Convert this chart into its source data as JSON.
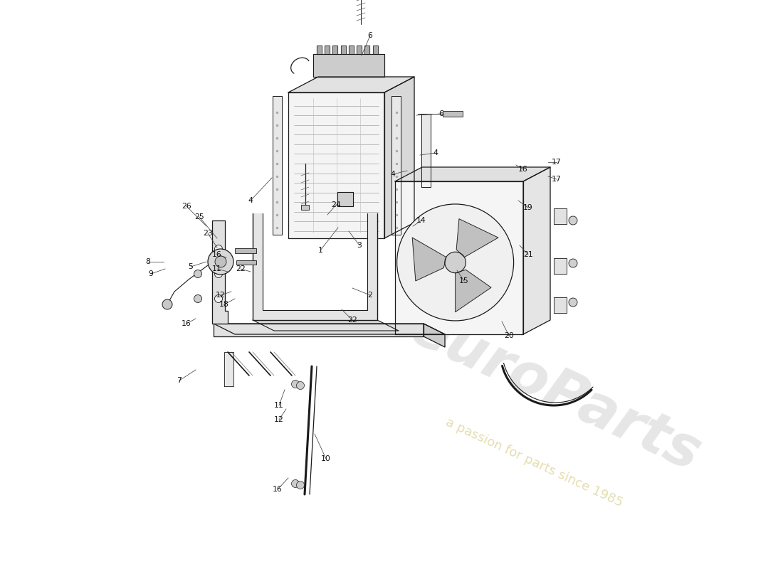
{
  "bg_color": "#ffffff",
  "line_color": "#1a1a1a",
  "wm_color1": "#c8c8c8",
  "wm_color2": "#d4c87a",
  "watermark1": "euroParts",
  "watermark2": "a passion for parts since 1985",
  "fig_w": 11.0,
  "fig_h": 8.0,
  "dpi": 100
}
